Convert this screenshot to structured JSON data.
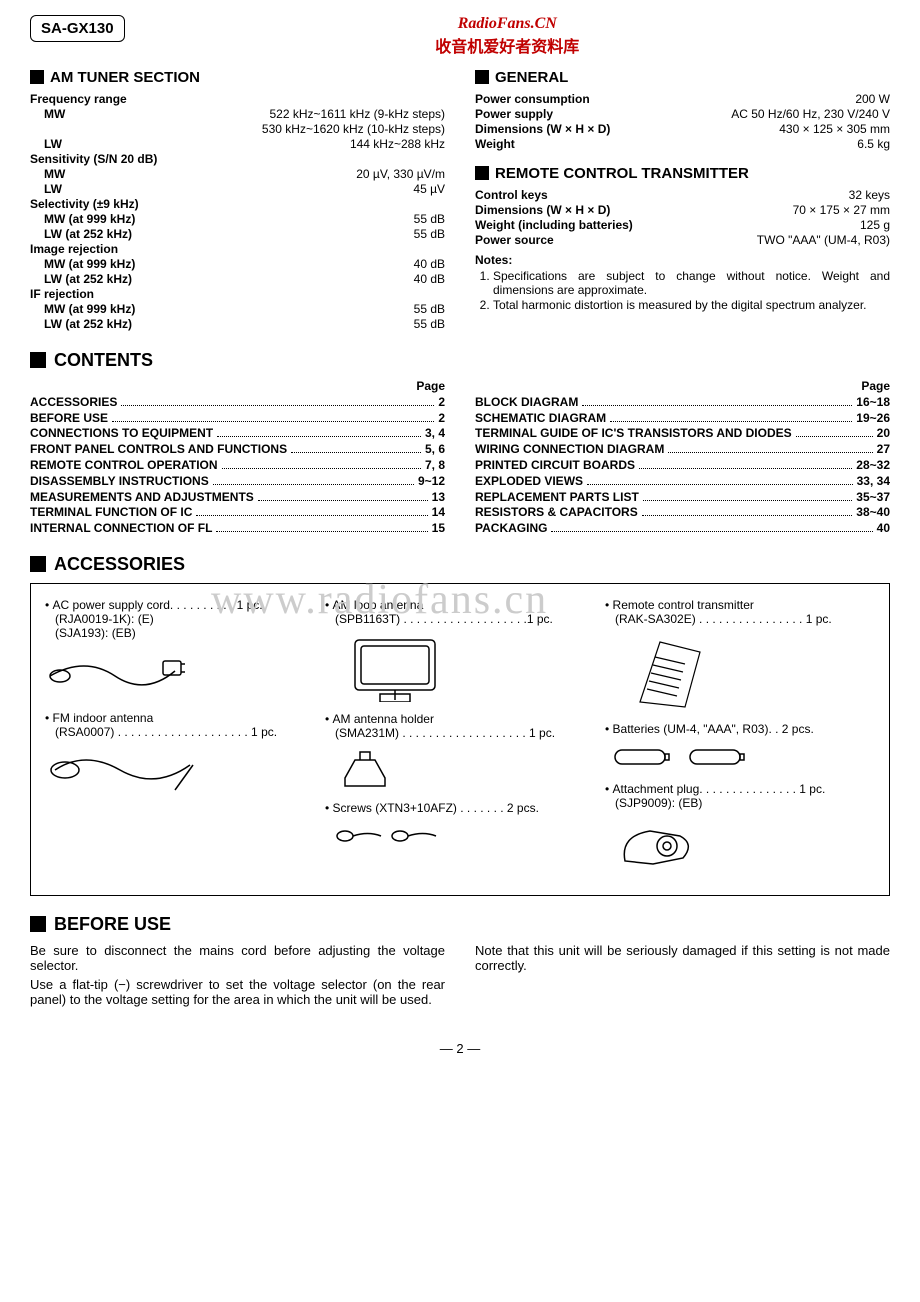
{
  "model": "SA-GX130",
  "site": {
    "name": "RadioFans.CN",
    "sub": "收音机爱好者资料库"
  },
  "amTuner": {
    "title": "AM TUNER SECTION",
    "groups": [
      {
        "label": "Frequency range",
        "rows": [
          {
            "sub": "MW",
            "val": "522 kHz~1611 kHz (9-kHz steps)"
          },
          {
            "sub": "",
            "val": "530 kHz~1620 kHz (10-kHz steps)"
          },
          {
            "sub": "LW",
            "val": "144 kHz~288 kHz"
          }
        ]
      },
      {
        "label": "Sensitivity (S/N 20 dB)",
        "rows": [
          {
            "sub": "MW",
            "val": "20 µV, 330 µV/m"
          },
          {
            "sub": "LW",
            "val": "45 µV"
          }
        ]
      },
      {
        "label": "Selectivity (±9 kHz)",
        "rows": [
          {
            "sub": "MW (at 999 kHz)",
            "val": "55 dB"
          },
          {
            "sub": "LW (at 252 kHz)",
            "val": "55 dB"
          }
        ]
      },
      {
        "label": "Image rejection",
        "rows": [
          {
            "sub": "MW (at 999 kHz)",
            "val": "40 dB"
          },
          {
            "sub": "LW (at 252 kHz)",
            "val": "40 dB"
          }
        ]
      },
      {
        "label": "IF rejection",
        "rows": [
          {
            "sub": "MW (at 999 kHz)",
            "val": "55 dB"
          },
          {
            "sub": "LW (at 252 kHz)",
            "val": "55 dB"
          }
        ]
      }
    ]
  },
  "general": {
    "title": "GENERAL",
    "rows": [
      {
        "label": "Power consumption",
        "val": "200 W"
      },
      {
        "label": "Power supply",
        "val": "AC 50 Hz/60 Hz, 230 V/240 V"
      },
      {
        "label": "Dimensions (W × H × D)",
        "val": "430 × 125 × 305 mm"
      },
      {
        "label": "Weight",
        "val": "6.5 kg"
      }
    ]
  },
  "remote": {
    "title": "REMOTE CONTROL TRANSMITTER",
    "rows": [
      {
        "label": "Control keys",
        "val": "32 keys"
      },
      {
        "label": "Dimensions (W × H × D)",
        "val": "70 × 175 × 27 mm"
      },
      {
        "label": "Weight (including batteries)",
        "val": "125 g"
      },
      {
        "label": "Power source",
        "val": "TWO \"AAA\" (UM-4, R03)"
      }
    ],
    "notesLabel": "Notes:",
    "notes": [
      "Specifications are subject to change without notice. Weight and dimensions are approximate.",
      "Total harmonic distortion is measured by the digital spectrum analyzer."
    ]
  },
  "contents": {
    "title": "CONTENTS",
    "pageHdr": "Page",
    "left": [
      {
        "label": "ACCESSORIES",
        "page": "2"
      },
      {
        "label": "BEFORE USE",
        "page": "2"
      },
      {
        "label": "CONNECTIONS TO EQUIPMENT",
        "page": "3, 4"
      },
      {
        "label": "FRONT PANEL CONTROLS AND FUNCTIONS",
        "page": "5, 6"
      },
      {
        "label": "REMOTE CONTROL OPERATION",
        "page": "7, 8"
      },
      {
        "label": "DISASSEMBLY INSTRUCTIONS",
        "page": "9~12"
      },
      {
        "label": "MEASUREMENTS AND ADJUSTMENTS",
        "page": "13"
      },
      {
        "label": "TERMINAL FUNCTION OF IC",
        "page": "14"
      },
      {
        "label": "INTERNAL CONNECTION OF FL",
        "page": "15"
      }
    ],
    "right": [
      {
        "label": "BLOCK DIAGRAM",
        "page": "16~18"
      },
      {
        "label": "SCHEMATIC DIAGRAM",
        "page": "19~26"
      },
      {
        "label": "TERMINAL GUIDE OF IC'S TRANSISTORS AND DIODES",
        "page": "20"
      },
      {
        "label": "WIRING CONNECTION DIAGRAM",
        "page": "27"
      },
      {
        "label": "PRINTED CIRCUIT BOARDS",
        "page": "28~32"
      },
      {
        "label": "EXPLODED VIEWS",
        "page": "33, 34"
      },
      {
        "label": "REPLACEMENT PARTS LIST",
        "page": "35~37"
      },
      {
        "label": "RESISTORS & CAPACITORS",
        "page": "38~40"
      },
      {
        "label": "PACKAGING",
        "page": "40"
      }
    ]
  },
  "accessories": {
    "title": "ACCESSORIES",
    "watermark": "www.radiofans.cn",
    "cols": [
      [
        {
          "line": "AC power supply cord. . . . . . . . . .  1 pc.",
          "sub": [
            "(RJA0019-1K): (E)",
            "(SJA193): (EB)"
          ],
          "icon": "cord"
        },
        {
          "line": "FM indoor antenna",
          "sub": [
            "(RSA0007) . . . . . . . . . . . . . . . . . . . .  1 pc."
          ],
          "icon": "fmant"
        }
      ],
      [
        {
          "line": "AM loop antenna",
          "sub": [
            "(SPB1163T) . . . . . . . . . . . . . . . . . . .1 pc."
          ],
          "icon": "loop"
        },
        {
          "line": "AM antenna holder",
          "sub": [
            "(SMA231M) . . . . . . . . . . . . . . . . . . .  1 pc."
          ],
          "icon": "holder"
        },
        {
          "line": "Screws (XTN3+10AFZ) . . . . . . .  2 pcs.",
          "icon": "screws"
        }
      ],
      [
        {
          "line": "Remote control transmitter",
          "sub": [
            "(RAK-SA302E) . . . . . . . . . . . . . . . .  1 pc."
          ],
          "icon": "remote"
        },
        {
          "line": "Batteries (UM-4, \"AAA\", R03). .  2 pcs.",
          "icon": "batt"
        },
        {
          "line": "Attachment plug. . . . . . . . . . . . . . .  1 pc.",
          "sub": [
            "(SJP9009): (EB)"
          ],
          "icon": "plug"
        }
      ]
    ]
  },
  "beforeUse": {
    "title": "BEFORE USE",
    "left": [
      "Be sure to disconnect the mains cord before adjusting the voltage selector.",
      "Use a flat-tip (−) screwdriver to set the voltage selector (on the rear panel) to the voltage setting for the area in which the unit will be used."
    ],
    "right": [
      "Note that this unit will be seriously damaged if this setting is not made correctly."
    ]
  },
  "pageNumber": "— 2 —"
}
